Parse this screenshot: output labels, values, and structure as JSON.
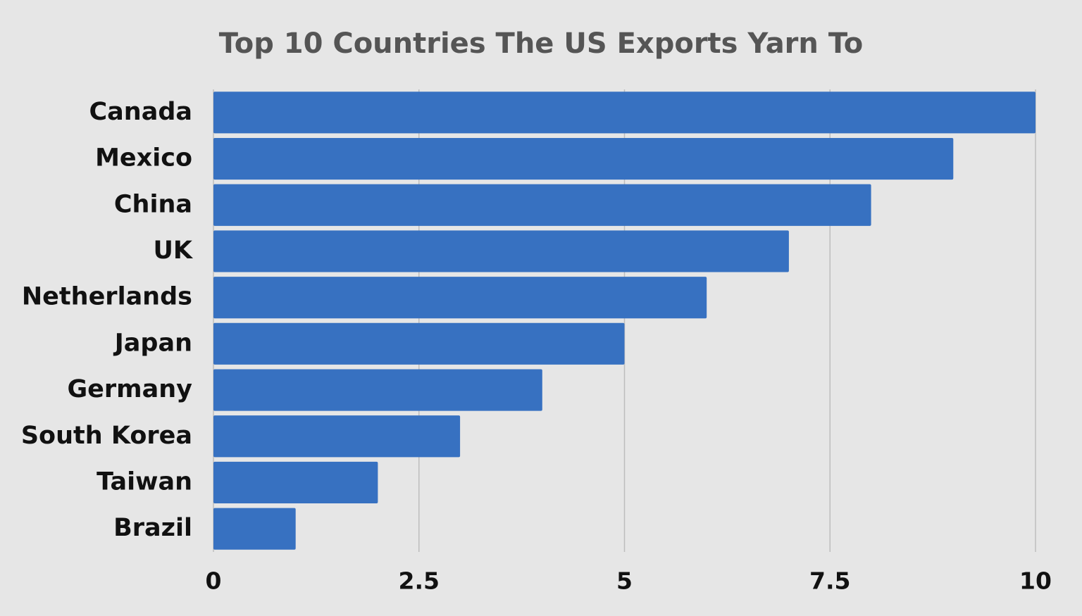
{
  "chart_data": {
    "type": "bar",
    "orientation": "horizontal",
    "title": "Top 10 Countries The US Exports Yarn To",
    "categories": [
      "Canada",
      "Mexico",
      "China",
      "UK",
      "Netherlands",
      "Japan",
      "Germany",
      "South Korea",
      "Taiwan",
      "Brazil"
    ],
    "values": [
      10,
      9,
      8,
      7,
      6,
      5,
      4,
      3,
      2,
      1
    ],
    "color": "#3771c1",
    "xlim": [
      0,
      10
    ],
    "xticks": [
      0,
      2.5,
      5,
      7.5,
      10
    ],
    "grid": true
  }
}
